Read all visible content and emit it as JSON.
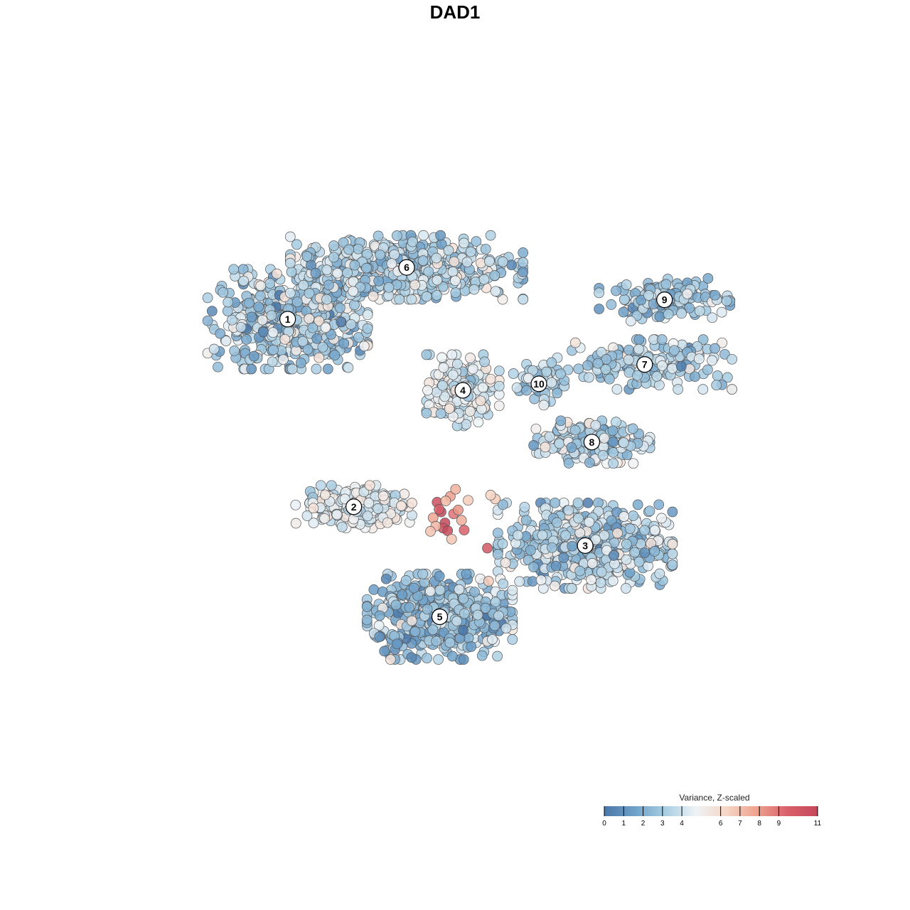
{
  "chart_data": {
    "type": "scatter",
    "title": "DAD1",
    "xlabel": "",
    "ylabel": "",
    "xlim": [
      0,
      100
    ],
    "ylim": [
      0,
      100
    ],
    "grid": false,
    "colorbar": {
      "title": "Variance, Z-scaled",
      "ticks": [
        "0",
        "1",
        "2",
        "3",
        "4",
        "6",
        "7",
        "8",
        "9",
        "11"
      ],
      "tick_values": [
        0,
        1,
        2,
        3,
        4,
        6,
        7,
        8,
        9,
        11
      ],
      "range": [
        0,
        11
      ],
      "colors": [
        "#4a77a8",
        "#6fa1c9",
        "#a8cde2",
        "#eef3f6",
        "#f6d6c6",
        "#eea28e",
        "#d9606b",
        "#c4485a"
      ],
      "placement": "bottom-right"
    },
    "clusters": [
      {
        "label": "1",
        "x": 22,
        "y": 71,
        "spread": [
          11,
          7
        ],
        "n": 520,
        "value": 3.2,
        "jitter": 1.3
      },
      {
        "label": "6",
        "x": 40,
        "y": 79,
        "spread": [
          16,
          4.5
        ],
        "n": 560,
        "value": 3.4,
        "jitter": 1.1
      },
      {
        "label": "9",
        "x": 79,
        "y": 74,
        "spread": [
          9,
          3
        ],
        "n": 140,
        "value": 3.0,
        "jitter": 1.0
      },
      {
        "label": "4",
        "x": 48.5,
        "y": 60,
        "spread": [
          5,
          5
        ],
        "n": 230,
        "value": 4.2,
        "jitter": 0.8
      },
      {
        "label": "7",
        "x": 76,
        "y": 64,
        "spread": [
          12,
          3.5
        ],
        "n": 200,
        "value": 3.3,
        "jitter": 1.1
      },
      {
        "label": "10",
        "x": 60,
        "y": 61,
        "spread": [
          3.5,
          3
        ],
        "n": 60,
        "value": 3.4,
        "jitter": 1.0
      },
      {
        "label": "8",
        "x": 68,
        "y": 52,
        "spread": [
          8,
          3
        ],
        "n": 180,
        "value": 3.5,
        "jitter": 1.1
      },
      {
        "label": "2",
        "x": 32,
        "y": 42,
        "spread": [
          8,
          3
        ],
        "n": 240,
        "value": 4.6,
        "jitter": 0.8
      },
      {
        "label": "3",
        "x": 67,
        "y": 36,
        "spread": [
          12,
          6
        ],
        "n": 600,
        "value": 3.3,
        "jitter": 1.2
      },
      {
        "label": "5",
        "x": 45,
        "y": 25,
        "spread": [
          10,
          6
        ],
        "n": 520,
        "value": 2.7,
        "jitter": 1.2
      }
    ],
    "highlight_points": [
      {
        "x": 44.6,
        "y": 42.7,
        "value": 10.5
      },
      {
        "x": 45.2,
        "y": 41.2,
        "value": 11.0
      },
      {
        "x": 45.8,
        "y": 39.5,
        "value": 11.0
      },
      {
        "x": 45.5,
        "y": 38.7,
        "value": 10.2
      },
      {
        "x": 46.2,
        "y": 38.3,
        "value": 10.8
      },
      {
        "x": 47.1,
        "y": 40.9,
        "value": 9.0
      },
      {
        "x": 47.8,
        "y": 41.5,
        "value": 8.2
      },
      {
        "x": 48.3,
        "y": 39.9,
        "value": 7.5
      },
      {
        "x": 46.6,
        "y": 43.6,
        "value": 8.0
      },
      {
        "x": 47.4,
        "y": 44.7,
        "value": 7.4
      },
      {
        "x": 44.0,
        "y": 40.3,
        "value": 7.8
      },
      {
        "x": 44.4,
        "y": 39.0,
        "value": 7.3
      },
      {
        "x": 43.6,
        "y": 38.2,
        "value": 6.9
      },
      {
        "x": 46.8,
        "y": 37.0,
        "value": 6.8
      },
      {
        "x": 48.7,
        "y": 38.4,
        "value": 9.5
      },
      {
        "x": 52.2,
        "y": 35.6,
        "value": 10.0
      },
      {
        "x": 52.4,
        "y": 30.5,
        "value": 6.6
      },
      {
        "x": 53.4,
        "y": 43.2,
        "value": 6.6
      },
      {
        "x": 52.7,
        "y": 43.8,
        "value": 6.3
      },
      {
        "x": 49.3,
        "y": 43.0,
        "value": 6.6
      },
      {
        "x": 45.9,
        "y": 42.9,
        "value": 7.2
      },
      {
        "x": 44.9,
        "y": 41.6,
        "value": 9.6
      }
    ]
  }
}
